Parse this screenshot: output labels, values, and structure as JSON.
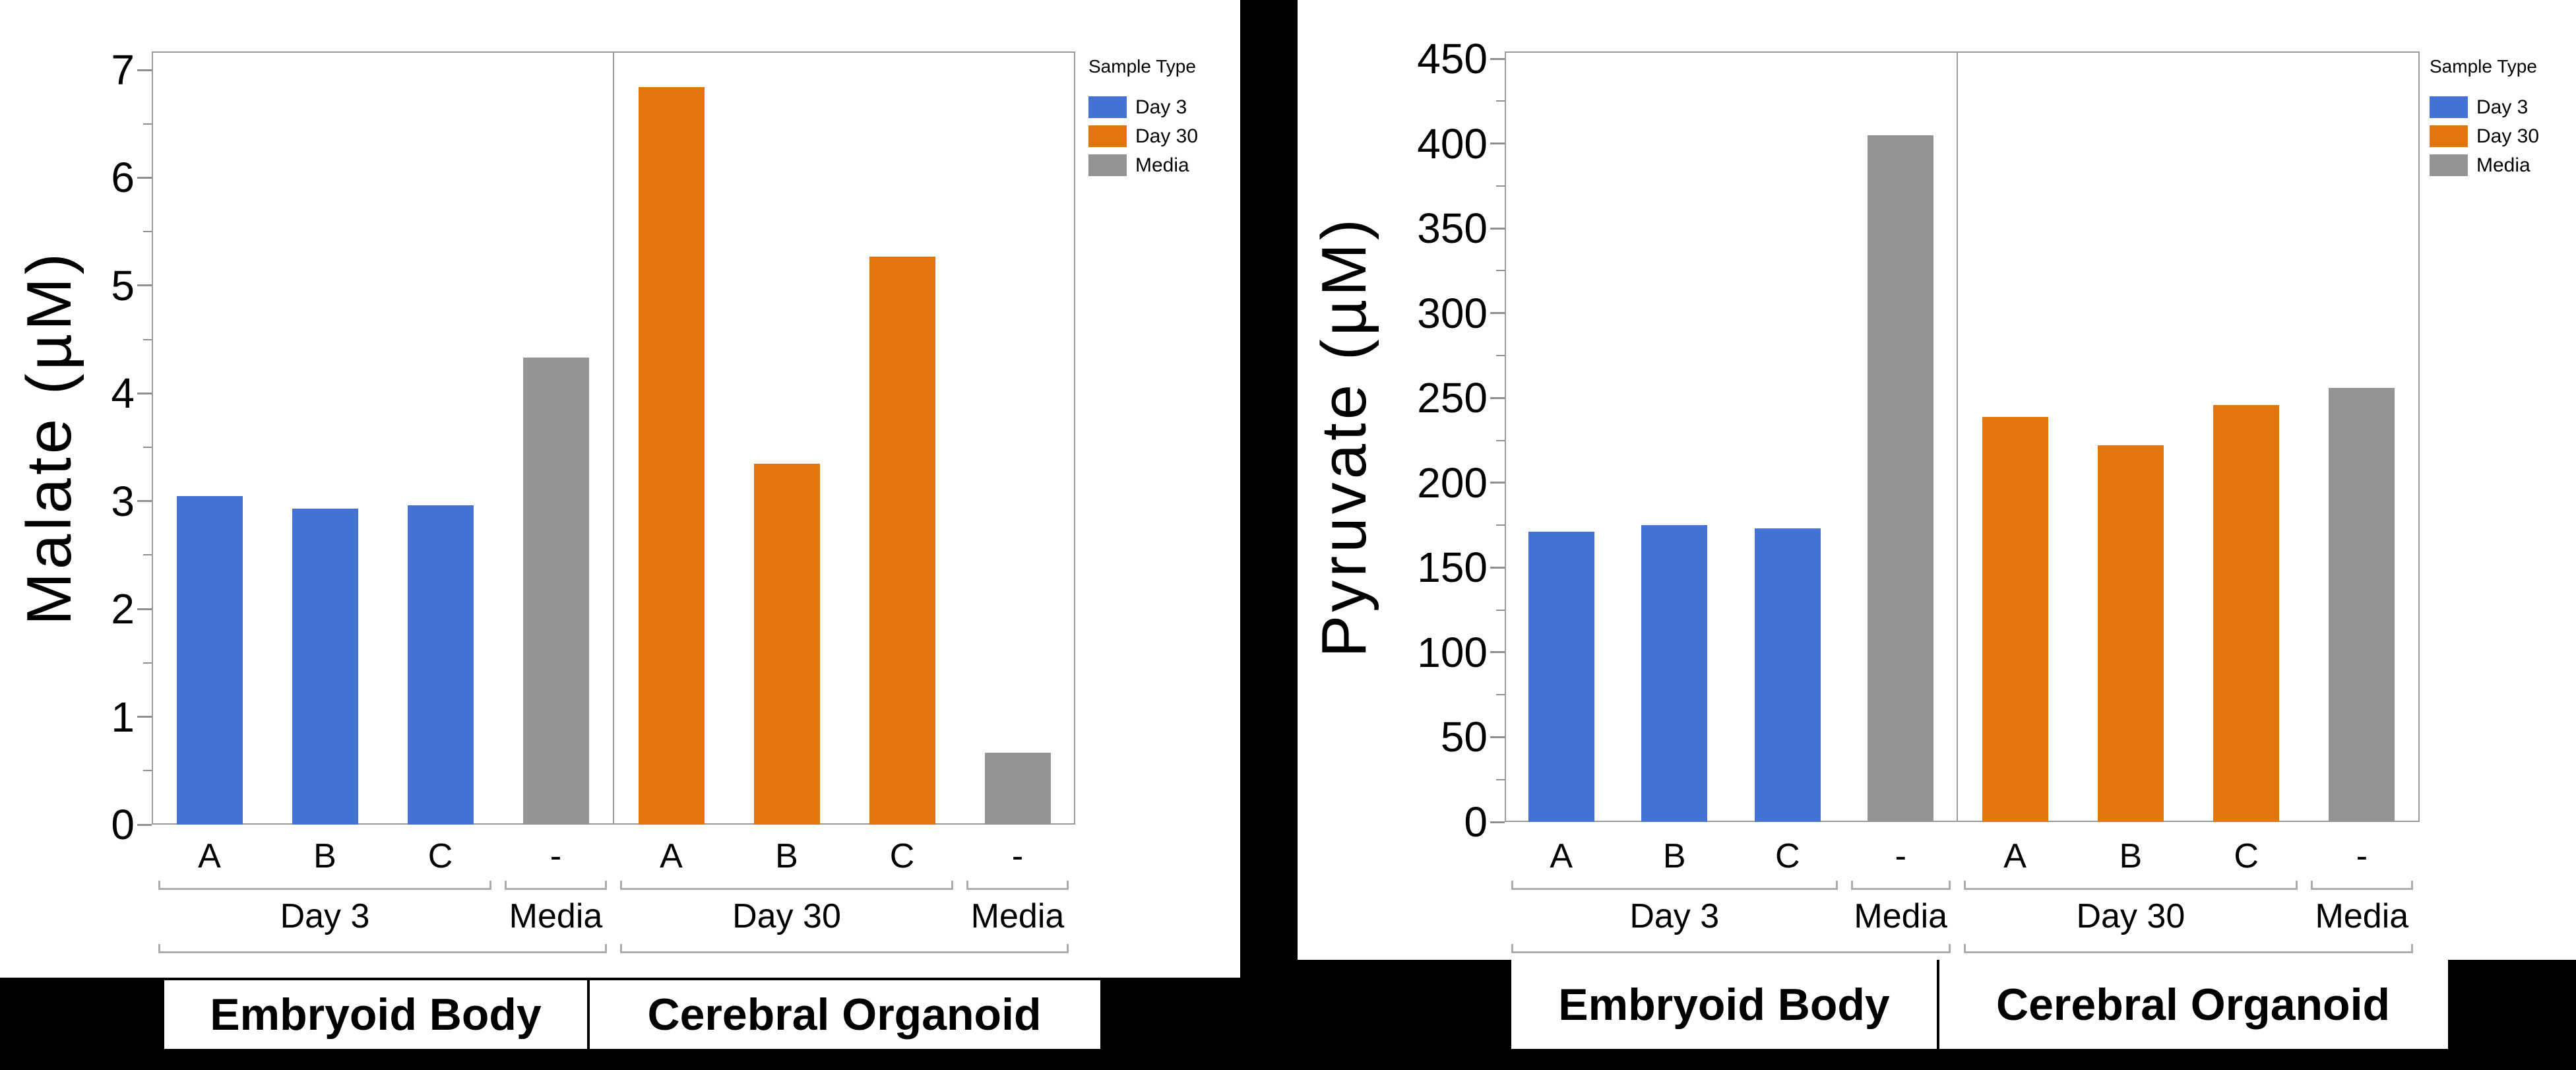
{
  "page": {
    "background": "#000000",
    "panel_background": "#FFFFFF"
  },
  "colors": {
    "Day 3": "#4472D4",
    "Day 30": "#E2750C",
    "Media": "#949494",
    "axis": "#9B9B9B",
    "bracket": "#ACACAC",
    "text": "#000000"
  },
  "legend": {
    "title": "Sample Type",
    "position": "right",
    "items": [
      {
        "label": "Day 3"
      },
      {
        "label": "Day 30"
      },
      {
        "label": "Media"
      }
    ]
  },
  "chart_data": [
    {
      "type": "bar",
      "title": "",
      "ylabel": "Malate (µM)",
      "xlabel": "",
      "ylim": [
        0,
        7
      ],
      "yticks": [
        0,
        1,
        2,
        3,
        4,
        5,
        6,
        7
      ],
      "ytick_step": 1,
      "minor_tick_step": 0.5,
      "grid": false,
      "facets": [
        {
          "label": "Embryoid Body",
          "groups": [
            {
              "label": "Day 3",
              "series": "Day 3",
              "bars": [
                {
                  "label": "A",
                  "value": 3.05
                },
                {
                  "label": "B",
                  "value": 2.93
                },
                {
                  "label": "C",
                  "value": 2.96
                }
              ]
            },
            {
              "label": "Media",
              "series": "Media",
              "bars": [
                {
                  "label": "-",
                  "value": 4.33
                }
              ]
            }
          ]
        },
        {
          "label": "Cerebral Organoid",
          "groups": [
            {
              "label": "Day 30",
              "series": "Day 30",
              "bars": [
                {
                  "label": "A",
                  "value": 6.84
                },
                {
                  "label": "B",
                  "value": 3.35
                },
                {
                  "label": "C",
                  "value": 5.27
                }
              ]
            },
            {
              "label": "Media",
              "series": "Media",
              "bars": [
                {
                  "label": "-",
                  "value": 0.67
                }
              ]
            }
          ]
        }
      ]
    },
    {
      "type": "bar",
      "title": "",
      "ylabel": "Pyruvate (µM)",
      "xlabel": "",
      "ylim": [
        0,
        450
      ],
      "yticks": [
        0,
        50,
        100,
        150,
        200,
        250,
        300,
        350,
        400,
        450
      ],
      "ytick_step": 50,
      "minor_tick_step": 25,
      "grid": false,
      "facets": [
        {
          "label": "Embryoid Body",
          "groups": [
            {
              "label": "Day 3",
              "series": "Day 3",
              "bars": [
                {
                  "label": "A",
                  "value": 171
                },
                {
                  "label": "B",
                  "value": 175
                },
                {
                  "label": "C",
                  "value": 173
                }
              ]
            },
            {
              "label": "Media",
              "series": "Media",
              "bars": [
                {
                  "label": "-",
                  "value": 405
                }
              ]
            }
          ]
        },
        {
          "label": "Cerebral Organoid",
          "groups": [
            {
              "label": "Day 30",
              "series": "Day 30",
              "bars": [
                {
                  "label": "A",
                  "value": 239
                },
                {
                  "label": "B",
                  "value": 222
                },
                {
                  "label": "C",
                  "value": 246
                }
              ]
            },
            {
              "label": "Media",
              "series": "Media",
              "bars": [
                {
                  "label": "-",
                  "value": 256
                }
              ]
            }
          ]
        }
      ]
    }
  ]
}
